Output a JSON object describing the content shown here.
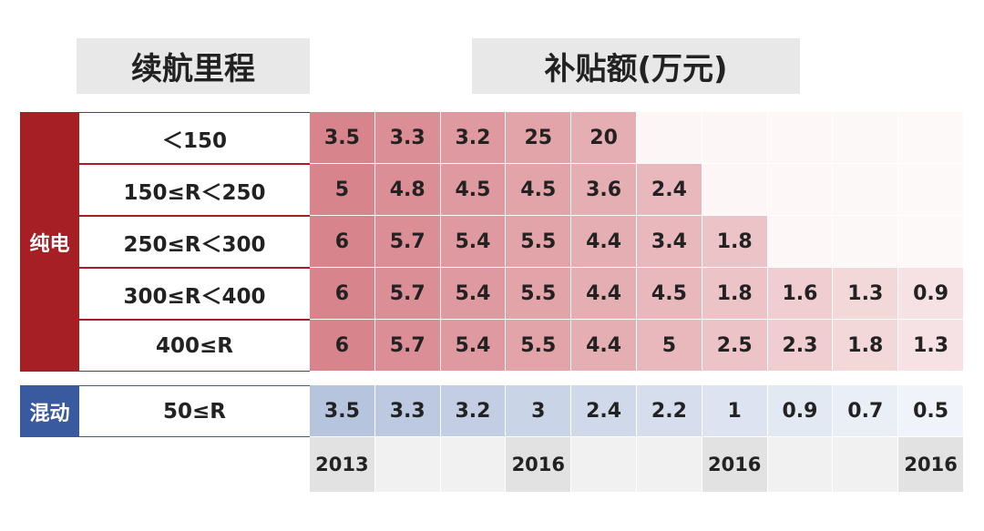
{
  "header": {
    "range_title": "续航里程",
    "subsidy_title": "补贴额(万元)"
  },
  "groups": [
    {
      "label": "纯电",
      "rows": [
        {
          "range": "＜150",
          "values": [
            3.5,
            3.3,
            3.2,
            25,
            20,
            null,
            null,
            null,
            null,
            null
          ]
        },
        {
          "range": "150≤R＜250",
          "values": [
            5,
            4.8,
            4.5,
            4.5,
            3.6,
            2.4,
            null,
            null,
            null,
            null
          ]
        },
        {
          "range": "250≤R＜300",
          "values": [
            6,
            5.7,
            5.4,
            5.5,
            4.4,
            3.4,
            1.8,
            null,
            null,
            null
          ]
        },
        {
          "range": "300≤R＜400",
          "values": [
            6,
            5.7,
            5.4,
            5.5,
            4.4,
            4.5,
            1.8,
            1.6,
            1.3,
            0.9
          ]
        },
        {
          "range": "400≤R",
          "values": [
            6,
            5.7,
            5.4,
            5.5,
            4.4,
            5,
            2.5,
            2.3,
            1.8,
            1.3
          ]
        }
      ]
    },
    {
      "label": "混动",
      "rows": [
        {
          "range": "50≤R",
          "values": [
            3.5,
            3.3,
            3.2,
            3,
            2.4,
            2.2,
            1,
            0.9,
            0.7,
            0.5
          ]
        }
      ]
    }
  ],
  "years": [
    "2013",
    null,
    null,
    "2016",
    null,
    null,
    "2016",
    null,
    null,
    "2016"
  ]
}
